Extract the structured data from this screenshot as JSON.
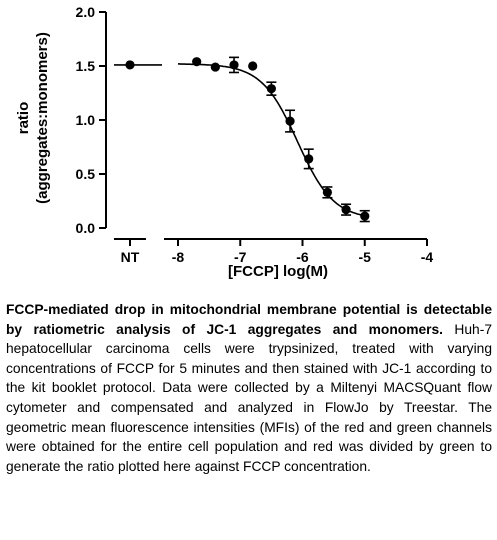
{
  "chart_data": {
    "type": "scatter",
    "xlabel": "[FCCP] log(M)",
    "ylabel_lines": [
      "ratio",
      "(aggregates:monomers)"
    ],
    "ylim": [
      0,
      2
    ],
    "yticks": [
      "0.0",
      "0.5",
      "1.0",
      "1.5",
      "2.0"
    ],
    "xlim": [
      -8,
      -4
    ],
    "xticks": [
      "-8",
      "-7",
      "-6",
      "-5",
      "-4"
    ],
    "nt_label": "NT",
    "nt_value": 1.51,
    "points": [
      {
        "x": -7.7,
        "y": 1.54,
        "err": 0.0
      },
      {
        "x": -7.4,
        "y": 1.49,
        "err": 0.0
      },
      {
        "x": -7.1,
        "y": 1.51,
        "err": 0.07
      },
      {
        "x": -6.8,
        "y": 1.5,
        "err": 0.0
      },
      {
        "x": -6.5,
        "y": 1.29,
        "err": 0.06
      },
      {
        "x": -6.2,
        "y": 0.99,
        "err": 0.1
      },
      {
        "x": -5.9,
        "y": 0.64,
        "err": 0.09
      },
      {
        "x": -5.6,
        "y": 0.33,
        "err": 0.05
      },
      {
        "x": -5.3,
        "y": 0.17,
        "err": 0.05
      },
      {
        "x": -5.0,
        "y": 0.11,
        "err": 0.05
      }
    ],
    "fit": {
      "top": 1.52,
      "bottom": 0.08,
      "logIC50": -6.08,
      "hill": -1.5
    }
  },
  "caption": {
    "bold": "FCCP-mediated drop in mitochondrial membrane potential is detectable by ratiometric analysis of JC-1 aggregates and monomers.",
    "body": " Huh-7 hepatocellular carcinoma cells were trypsinized, treated with varying concentrations of FCCP for 5 minutes and then stained with JC-1 according to the kit booklet protocol. Data were collected by a Miltenyi MACSQuant flow cytometer and compensated and analyzed in FlowJo by Treestar. The geometric mean fluorescence intensities (MFIs) of the red and green channels were obtained for the entire cell population and red was divided by green to generate the ratio plotted here against FCCP concentration."
  }
}
